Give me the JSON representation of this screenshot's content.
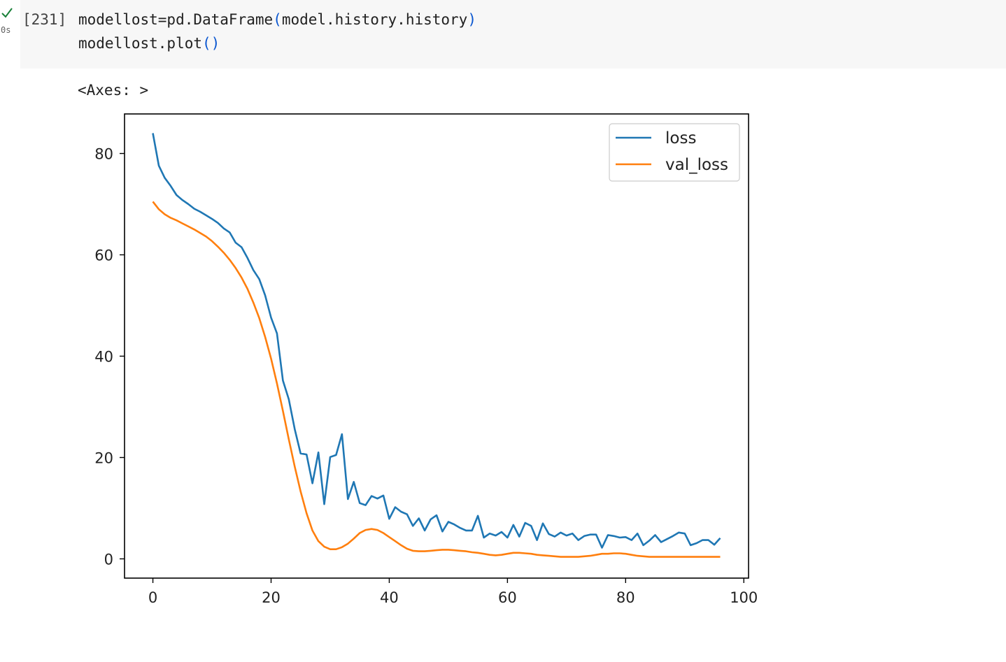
{
  "cell": {
    "status_time": "0s",
    "exec_count": "[231]",
    "code_line1_var": "modellost=pd.DataFrame",
    "code_line1_open": "(",
    "code_line1_arg": "model.history.history",
    "code_line1_close": ")",
    "code_line2_call": "modellost.plot",
    "code_line2_parens": "()",
    "output": "<Axes: >"
  },
  "chart_data": {
    "type": "line",
    "title": "",
    "xlabel": "",
    "ylabel": "",
    "xlim": [
      -4.8,
      100.8
    ],
    "ylim": [
      -3.8,
      87.8
    ],
    "xticks": [
      0,
      20,
      40,
      60,
      80,
      100
    ],
    "yticks": [
      0,
      20,
      40,
      60,
      80
    ],
    "grid": false,
    "legend_position": "upper right",
    "series": [
      {
        "name": "loss",
        "color": "#1f77b4",
        "x": [
          0,
          1,
          2,
          3,
          4,
          5,
          6,
          7,
          8,
          9,
          10,
          11,
          12,
          13,
          14,
          15,
          16,
          17,
          18,
          19,
          20,
          21,
          22,
          23,
          24,
          25,
          26,
          27,
          28,
          29,
          30,
          31,
          32,
          33,
          34,
          35,
          36,
          37,
          38,
          39,
          40,
          41,
          42,
          43,
          44,
          45,
          46,
          47,
          48,
          49,
          50,
          51,
          52,
          53,
          54,
          55,
          56,
          57,
          58,
          59,
          60,
          61,
          62,
          63,
          64,
          65,
          66,
          67,
          68,
          69,
          70,
          71,
          72,
          73,
          74,
          75,
          76,
          77,
          78,
          79,
          80,
          81,
          82,
          83,
          84,
          85,
          86,
          87,
          88,
          89,
          90,
          91,
          92,
          93,
          94,
          95,
          96
        ],
        "values": [
          84.0,
          77.6,
          75.2,
          73.6,
          71.8,
          70.8,
          70.0,
          69.1,
          68.5,
          67.8,
          67.1,
          66.3,
          65.2,
          64.4,
          62.4,
          61.5,
          59.4,
          57.0,
          55.2,
          52.0,
          47.6,
          44.5,
          35.2,
          31.5,
          25.6,
          20.8,
          20.6,
          14.9,
          21.0,
          10.8,
          20.1,
          20.5,
          24.6,
          11.8,
          15.2,
          11.0,
          10.6,
          12.4,
          11.9,
          12.5,
          7.9,
          10.2,
          9.3,
          8.8,
          6.5,
          8.0,
          5.6,
          7.8,
          8.6,
          5.4,
          7.3,
          6.8,
          6.1,
          5.6,
          5.6,
          8.5,
          4.2,
          5.0,
          4.6,
          5.3,
          4.2,
          6.7,
          4.4,
          7.1,
          6.5,
          3.7,
          7.0,
          4.9,
          4.4,
          5.2,
          4.6,
          5.0,
          3.7,
          4.5,
          4.8,
          4.8,
          2.2,
          4.7,
          4.5,
          4.2,
          4.3,
          3.7,
          5.0,
          2.7,
          3.6,
          4.7,
          3.3,
          3.9,
          4.5,
          5.2,
          5.0,
          2.7,
          3.1,
          3.7,
          3.7,
          2.8,
          4.1
        ]
      },
      {
        "name": "val_loss",
        "color": "#ff7f0e",
        "x": [
          0,
          1,
          2,
          3,
          4,
          5,
          6,
          7,
          8,
          9,
          10,
          11,
          12,
          13,
          14,
          15,
          16,
          17,
          18,
          19,
          20,
          21,
          22,
          23,
          24,
          25,
          26,
          27,
          28,
          29,
          30,
          31,
          32,
          33,
          34,
          35,
          36,
          37,
          38,
          39,
          40,
          41,
          42,
          43,
          44,
          45,
          46,
          47,
          48,
          49,
          50,
          51,
          52,
          53,
          54,
          55,
          56,
          57,
          58,
          59,
          60,
          61,
          62,
          63,
          64,
          65,
          66,
          67,
          68,
          69,
          70,
          71,
          72,
          73,
          74,
          75,
          76,
          77,
          78,
          79,
          80,
          81,
          82,
          83,
          84,
          85,
          86,
          87,
          88,
          89,
          90,
          91,
          92,
          93,
          94,
          95,
          96
        ],
        "values": [
          70.5,
          69.0,
          68.0,
          67.3,
          66.8,
          66.2,
          65.6,
          65.0,
          64.3,
          63.6,
          62.7,
          61.6,
          60.4,
          59.0,
          57.4,
          55.5,
          53.3,
          50.6,
          47.5,
          43.8,
          39.5,
          34.6,
          29.2,
          23.6,
          18.2,
          13.3,
          9.0,
          5.6,
          3.5,
          2.4,
          1.9,
          1.9,
          2.3,
          3.0,
          4.0,
          5.1,
          5.7,
          5.9,
          5.7,
          5.1,
          4.3,
          3.5,
          2.7,
          2.0,
          1.6,
          1.5,
          1.5,
          1.6,
          1.7,
          1.8,
          1.8,
          1.7,
          1.6,
          1.5,
          1.3,
          1.2,
          1.0,
          0.8,
          0.7,
          0.8,
          1.0,
          1.2,
          1.2,
          1.1,
          1.0,
          0.8,
          0.7,
          0.6,
          0.5,
          0.4,
          0.4,
          0.4,
          0.4,
          0.5,
          0.6,
          0.8,
          1.0,
          1.0,
          1.1,
          1.1,
          1.0,
          0.8,
          0.6,
          0.5,
          0.4,
          0.4,
          0.4,
          0.4,
          0.4,
          0.4,
          0.4,
          0.4,
          0.4,
          0.4,
          0.4,
          0.4,
          0.4
        ]
      }
    ]
  }
}
